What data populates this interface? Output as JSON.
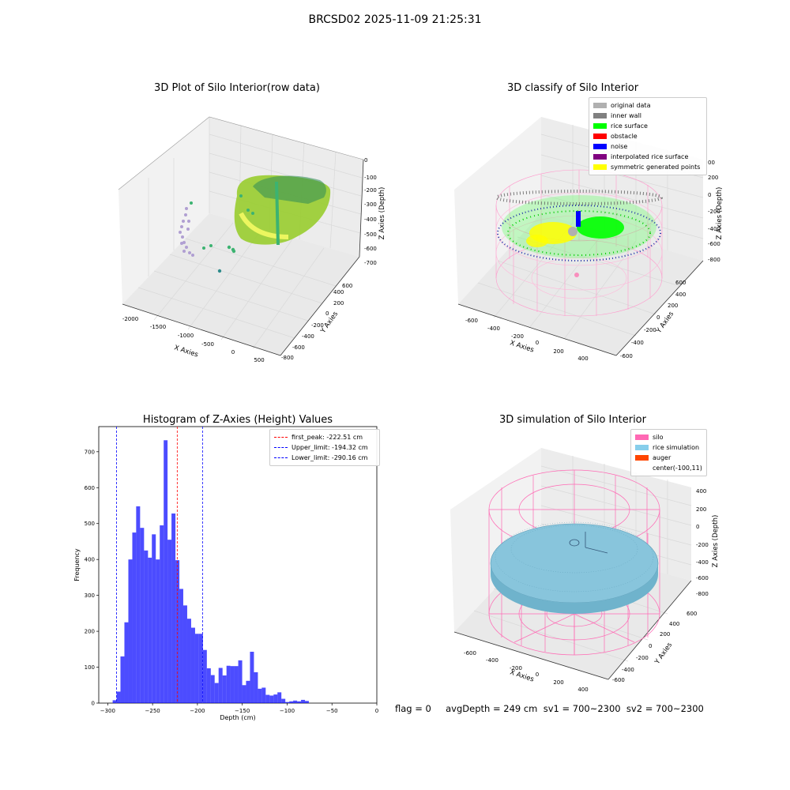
{
  "suptitle": "BRCSD02 2025-11-09 21:25:31",
  "panel1": {
    "title": "3D Plot of Silo Interior(row data)",
    "xlabel": "X Axies",
    "ylabel": "Y Axies",
    "zlabel": "Z Axies (Depth)",
    "xticks": [
      "-2000",
      "-1500",
      "-1000",
      "-500",
      "0",
      "500"
    ],
    "yticks": [
      "-800",
      "-600",
      "-400",
      "-200",
      "0",
      "200",
      "400",
      "600"
    ],
    "zticks": [
      "0",
      "-100",
      "-200",
      "-300",
      "-400",
      "-500",
      "-600",
      "-700"
    ]
  },
  "panel2": {
    "title": "3D classify of Silo Interior",
    "xlabel": "X Axies",
    "ylabel": "Y Axies",
    "zlabel": "Z Axies (Depth)",
    "xticks": [
      "-600",
      "-400",
      "-200",
      "0",
      "200",
      "400"
    ],
    "yticks": [
      "-600",
      "-400",
      "-200",
      "0",
      "200",
      "400",
      "600"
    ],
    "zticks": [
      "200",
      "0",
      "-200",
      "-400",
      "-600",
      "-800"
    ],
    "zticks_extra": [
      "00"
    ],
    "legend": [
      {
        "label": "original data",
        "color": "#b0b0b0"
      },
      {
        "label": "inner wall",
        "color": "#808080"
      },
      {
        "label": "rice surface",
        "color": "#00ff00"
      },
      {
        "label": "obstacle",
        "color": "#ff0000"
      },
      {
        "label": "noise",
        "color": "#0000ff"
      },
      {
        "label": "interpolated rice surface",
        "color": "#800080"
      },
      {
        "label": "symmetric generated points",
        "color": "#ffff00"
      }
    ]
  },
  "panel3": {
    "title": "Histogram of Z-Axies (Height) Values",
    "legend": [
      {
        "label": "first_peak: -222.51 cm",
        "color": "#ff0000"
      },
      {
        "label": "Upper_limit: -194.32 cm",
        "color": "#0000ff"
      },
      {
        "label": "Lower_limit: -290.16 cm",
        "color": "#0000ff"
      }
    ]
  },
  "panel4": {
    "title": "3D simulation of Silo Interior",
    "xlabel": "X Axies",
    "ylabel": "Y Axies",
    "zlabel": "Z Axies (Depth)",
    "xticks": [
      "-600",
      "-400",
      "-200",
      "0",
      "200",
      "400"
    ],
    "yticks": [
      "-600",
      "-400",
      "-200",
      "0",
      "200",
      "400",
      "600"
    ],
    "zticks": [
      "400",
      "200",
      "0",
      "-200",
      "-400",
      "-600",
      "-800"
    ],
    "legend": [
      {
        "label": "silo",
        "color": "#ff69b4"
      },
      {
        "label": "rice simulation",
        "color": "#87ceeb"
      },
      {
        "label": "auger",
        "color": "#ff4500"
      },
      {
        "label": "center(-100,11)",
        "color": "none"
      }
    ]
  },
  "footer": "flag = 0     avgDepth = 249 cm  sv1 = 700~2300  sv2 = 700~2300",
  "chart_data": [
    {
      "type": "bar",
      "title": "Histogram of Z-Axies (Height) Values",
      "xlabel": "Depth (cm)",
      "ylabel": "Frequency",
      "xlim": [
        -310,
        0
      ],
      "ylim": [
        0,
        770
      ],
      "bar_color": "#0000ff",
      "xticks": [
        -300,
        -250,
        -200,
        -150,
        -100,
        -50,
        0
      ],
      "yticks": [
        0,
        100,
        200,
        300,
        400,
        500,
        600,
        700
      ],
      "bins": [
        {
          "x0": -294.5,
          "x1": -290.1,
          "v": 8
        },
        {
          "x0": -290.1,
          "x1": -285.8,
          "v": 32
        },
        {
          "x0": -285.8,
          "x1": -281.4,
          "v": 130
        },
        {
          "x0": -281.4,
          "x1": -277.0,
          "v": 225
        },
        {
          "x0": -277.0,
          "x1": -272.6,
          "v": 400
        },
        {
          "x0": -272.6,
          "x1": -268.3,
          "v": 475
        },
        {
          "x0": -268.3,
          "x1": -263.9,
          "v": 548
        },
        {
          "x0": -263.9,
          "x1": -259.5,
          "v": 488
        },
        {
          "x0": -259.5,
          "x1": -255.1,
          "v": 425
        },
        {
          "x0": -255.1,
          "x1": -250.8,
          "v": 405
        },
        {
          "x0": -250.8,
          "x1": -246.4,
          "v": 470
        },
        {
          "x0": -246.4,
          "x1": -242.0,
          "v": 400
        },
        {
          "x0": -242.0,
          "x1": -237.6,
          "v": 495
        },
        {
          "x0": -237.6,
          "x1": -233.3,
          "v": 732
        },
        {
          "x0": -233.3,
          "x1": -228.9,
          "v": 455
        },
        {
          "x0": -228.9,
          "x1": -224.5,
          "v": 528
        },
        {
          "x0": -224.5,
          "x1": -220.1,
          "v": 398
        },
        {
          "x0": -220.1,
          "x1": -215.8,
          "v": 318
        },
        {
          "x0": -215.8,
          "x1": -211.4,
          "v": 272
        },
        {
          "x0": -211.4,
          "x1": -207.0,
          "v": 235
        },
        {
          "x0": -207.0,
          "x1": -202.6,
          "v": 210
        },
        {
          "x0": -202.6,
          "x1": -198.3,
          "v": 193
        },
        {
          "x0": -198.3,
          "x1": -193.9,
          "v": 193
        },
        {
          "x0": -193.9,
          "x1": -189.5,
          "v": 148
        },
        {
          "x0": -189.5,
          "x1": -185.1,
          "v": 97
        },
        {
          "x0": -185.1,
          "x1": -180.8,
          "v": 78
        },
        {
          "x0": -180.8,
          "x1": -176.4,
          "v": 56
        },
        {
          "x0": -176.4,
          "x1": -172.0,
          "v": 98
        },
        {
          "x0": -172.0,
          "x1": -167.6,
          "v": 77
        },
        {
          "x0": -167.6,
          "x1": -163.3,
          "v": 104
        },
        {
          "x0": -163.3,
          "x1": -158.9,
          "v": 103
        },
        {
          "x0": -158.9,
          "x1": -154.5,
          "v": 103
        },
        {
          "x0": -154.5,
          "x1": -150.1,
          "v": 119
        },
        {
          "x0": -150.1,
          "x1": -145.8,
          "v": 50
        },
        {
          "x0": -145.8,
          "x1": -141.4,
          "v": 62
        },
        {
          "x0": -141.4,
          "x1": -137.0,
          "v": 143
        },
        {
          "x0": -137.0,
          "x1": -132.6,
          "v": 86
        },
        {
          "x0": -132.6,
          "x1": -128.3,
          "v": 40
        },
        {
          "x0": -128.3,
          "x1": -123.9,
          "v": 43
        },
        {
          "x0": -123.9,
          "x1": -119.5,
          "v": 23
        },
        {
          "x0": -119.5,
          "x1": -115.1,
          "v": 21
        },
        {
          "x0": -115.1,
          "x1": -110.8,
          "v": 24
        },
        {
          "x0": -110.8,
          "x1": -106.4,
          "v": 30
        },
        {
          "x0": -106.4,
          "x1": -102.0,
          "v": 12
        },
        {
          "x0": -102.0,
          "x1": -97.6,
          "v": 3
        },
        {
          "x0": -97.6,
          "x1": -93.3,
          "v": 5
        },
        {
          "x0": -93.3,
          "x1": -88.9,
          "v": 7
        },
        {
          "x0": -88.9,
          "x1": -84.5,
          "v": 5
        },
        {
          "x0": -84.5,
          "x1": -80.1,
          "v": 9
        },
        {
          "x0": -80.1,
          "x1": -75.8,
          "v": 6
        }
      ],
      "vlines": [
        {
          "x": -222.51,
          "color": "#ff0000",
          "style": "dashed"
        },
        {
          "x": -194.32,
          "color": "#0000ff",
          "style": "dashed"
        },
        {
          "x": -290.16,
          "color": "#0000ff",
          "style": "dashed"
        }
      ]
    }
  ]
}
